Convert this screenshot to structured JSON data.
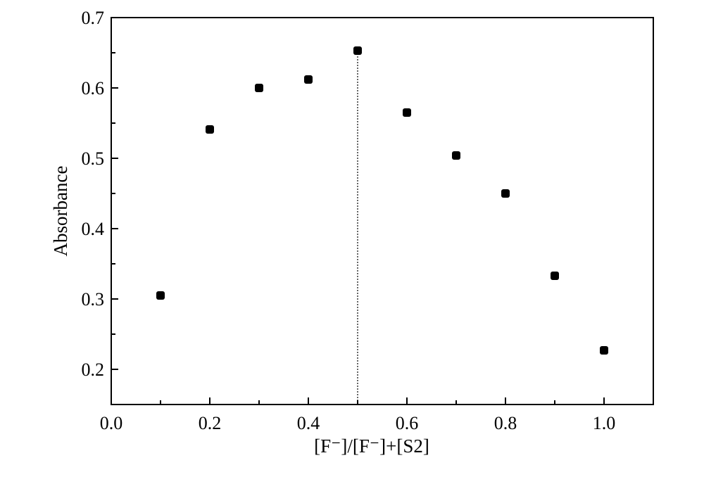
{
  "chart_data": {
    "type": "scatter",
    "title": "",
    "xlabel": "[F⁻]/[F⁻]+[S2]",
    "ylabel": "Absorbance",
    "xlim": [
      0.0,
      1.1
    ],
    "ylim": [
      0.15,
      0.7
    ],
    "xticks": [
      "0.0",
      "0.2",
      "0.4",
      "0.6",
      "0.8",
      "1.0"
    ],
    "yticks": [
      "0.2",
      "0.3",
      "0.4",
      "0.5",
      "0.6",
      "0.7"
    ],
    "grid": false,
    "marker": "rounded-square",
    "color": "#000000",
    "x": [
      0.1,
      0.2,
      0.3,
      0.4,
      0.5,
      0.6,
      0.7,
      0.8,
      0.9,
      1.0
    ],
    "y": [
      0.305,
      0.541,
      0.6,
      0.612,
      0.653,
      0.565,
      0.504,
      0.45,
      0.333,
      0.227
    ],
    "annotations": [
      {
        "type": "dotted-vertical-line",
        "x": 0.5,
        "from_y": 0.15,
        "to_y": 0.653
      }
    ]
  }
}
